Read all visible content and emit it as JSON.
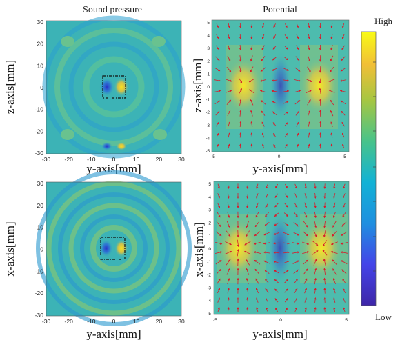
{
  "panels": {
    "sound_top": {
      "title": "Sound pressure",
      "xlabel": "y-axis[mm]",
      "ylabel": "z-axis[mm]"
    },
    "potential_top": {
      "title": "Potential",
      "xlabel": "y-axis[mm]",
      "ylabel": "z-axis[mm]"
    },
    "sound_bottom": {
      "title": "",
      "xlabel": "y-axis[mm]",
      "ylabel": "x-axis[mm]"
    },
    "potential_bottom": {
      "title": "",
      "xlabel": "y-axis[mm]",
      "ylabel": "x-axis[mm]"
    }
  },
  "ticks": {
    "sound_x": [
      "-30",
      "-20",
      "-10",
      "0",
      "10",
      "20",
      "30"
    ],
    "sound_y": [
      "30",
      "20",
      "10",
      "0",
      "-10",
      "-20",
      "-30"
    ],
    "pot_x": [
      "-5",
      "0",
      "5"
    ],
    "pot_y": [
      "5",
      "4",
      "3",
      "2",
      "1",
      "0",
      "-1",
      "-2",
      "-3",
      "-4",
      "-5"
    ]
  },
  "colorbar": {
    "high_label": "High",
    "low_label": "Low"
  },
  "colors": {
    "low": "#3e26a8",
    "mid": "#2ab0c4",
    "field": "#3bb7b4",
    "high": "#f9fb15",
    "arrow": "#d81b2a"
  }
}
